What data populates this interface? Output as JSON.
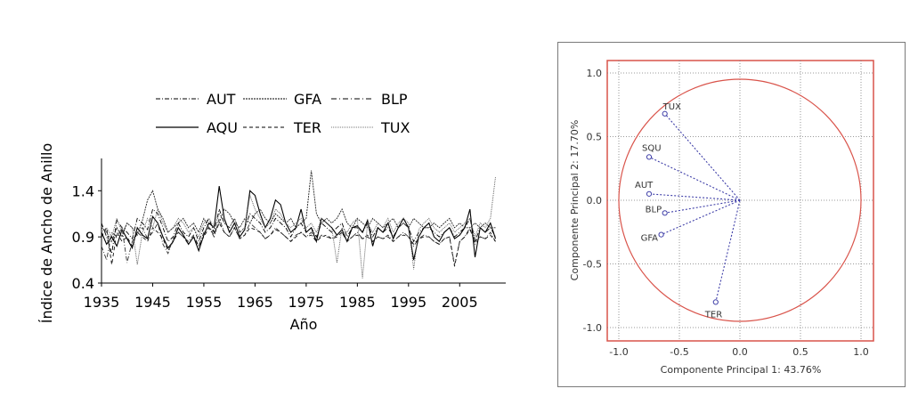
{
  "chart_data": [
    {
      "type": "line",
      "title": "",
      "xlabel": "Año",
      "ylabel": "Índice de Ancho de Anillo",
      "xlim": [
        1935,
        2014
      ],
      "ylim": [
        0.4,
        1.75
      ],
      "xticks": [
        1935,
        1945,
        1955,
        1965,
        1975,
        1985,
        1995,
        2005
      ],
      "xtick_labels": [
        "1935",
        "1945",
        "1955",
        "1965",
        "1975",
        "1985",
        "1995",
        "2005"
      ],
      "yticks": [
        0.4,
        0.9,
        1.4
      ],
      "ytick_labels": [
        "0.4",
        "0.9",
        "1.4"
      ],
      "legend": {
        "placement": "top",
        "entries": [
          {
            "label": "AUT",
            "style": "dash-dot"
          },
          {
            "label": "GFA",
            "style": "dense-dash"
          },
          {
            "label": "BLP",
            "style": "dash-dot"
          },
          {
            "label": "AQU",
            "style": "solid"
          },
          {
            "label": "TER",
            "style": "dashed"
          },
          {
            "label": "TUX",
            "style": "dotted"
          }
        ]
      },
      "x_start": 1935,
      "series": [
        {
          "name": "AQU",
          "style": "solid",
          "color": "#000000",
          "values": [
            0.95,
            0.82,
            0.9,
            0.8,
            0.98,
            0.88,
            0.78,
            1.0,
            0.92,
            0.88,
            1.12,
            1.05,
            0.9,
            0.78,
            0.85,
            1.0,
            0.92,
            0.82,
            0.9,
            0.75,
            0.92,
            1.05,
            1.0,
            1.45,
            1.1,
            0.95,
            1.05,
            0.9,
            0.98,
            1.4,
            1.35,
            1.15,
            1.0,
            1.1,
            1.3,
            1.25,
            1.05,
            0.95,
            1.0,
            1.2,
            0.95,
            1.0,
            0.85,
            1.1,
            1.05,
            1.0,
            0.92,
            0.98,
            0.85,
            1.0,
            1.02,
            0.95,
            1.08,
            0.8,
            1.0,
            0.95,
            1.05,
            0.88,
            1.0,
            1.1,
            1.0,
            0.65,
            0.9,
            1.0,
            1.05,
            0.9,
            0.85,
            0.95,
            1.0,
            0.88,
            0.92,
            1.0,
            1.2,
            0.68,
            1.0,
            0.95,
            1.05,
            0.88
          ]
        },
        {
          "name": "AUT",
          "style": "dash-dot",
          "color": "#000000",
          "values": [
            1.05,
            0.9,
            0.72,
            1.08,
            1.0,
            0.95,
            0.88,
            1.1,
            1.05,
            0.98,
            1.2,
            1.15,
            1.0,
            0.85,
            0.9,
            1.05,
            0.95,
            0.9,
            1.0,
            0.85,
            1.0,
            1.1,
            0.95,
            1.2,
            1.05,
            1.0,
            1.1,
            0.95,
            1.0,
            1.15,
            1.1,
            1.05,
            0.95,
            1.0,
            1.1,
            1.05,
            1.0,
            0.9,
            1.0,
            1.05,
            0.95,
            1.0,
            0.9,
            1.05,
            1.0,
            0.95,
            1.0,
            1.05,
            0.9,
            1.0,
            1.0,
            0.95,
            1.05,
            0.9,
            1.0,
            0.95,
            1.0,
            0.9,
            1.0,
            1.05,
            1.0,
            0.85,
            0.95,
            1.0,
            1.0,
            0.95,
            0.9,
            0.95,
            1.0,
            0.9,
            0.95,
            1.0,
            1.1,
            0.85,
            1.0,
            0.95,
            1.0,
            0.9
          ]
        },
        {
          "name": "GFA",
          "style": "dense-dash",
          "color": "#222222",
          "values": [
            1.0,
            0.95,
            0.85,
            1.0,
            0.9,
            1.05,
            1.0,
            0.92,
            1.08,
            1.3,
            1.4,
            1.2,
            1.1,
            0.95,
            1.0,
            1.05,
            1.1,
            1.0,
            1.05,
            0.95,
            1.1,
            1.0,
            0.95,
            1.05,
            1.2,
            1.15,
            1.05,
            1.0,
            1.1,
            1.05,
            1.15,
            1.2,
            1.1,
            1.05,
            1.15,
            1.1,
            1.05,
            1.1,
            1.0,
            1.05,
            1.1,
            1.62,
            1.15,
            1.05,
            1.1,
            1.05,
            1.1,
            1.2,
            1.05,
            1.0,
            1.1,
            1.05,
            1.0,
            1.1,
            1.05,
            1.0,
            1.05,
            1.1,
            1.0,
            1.05,
            1.0,
            1.1,
            1.05,
            1.0,
            1.0,
            1.05,
            1.0,
            1.05,
            1.1,
            1.0,
            1.05,
            1.0,
            1.0,
            1.05,
            1.0,
            1.05,
            1.0,
            1.0
          ]
        },
        {
          "name": "BLP",
          "style": "dash-dot",
          "color": "#333333",
          "values": [
            0.8,
            0.65,
            0.95,
            0.9,
            1.0,
            0.62,
            0.85,
            0.95,
            1.0,
            0.88,
            0.95,
            1.05,
            0.82,
            0.72,
            0.88,
            0.95,
            0.9,
            0.85,
            0.92,
            0.8,
            0.95,
            1.0,
            0.9,
            1.1,
            0.95,
            0.9,
            1.0,
            0.88,
            0.92,
            1.05,
            1.0,
            0.95,
            0.88,
            0.92,
            1.0,
            0.95,
            0.9,
            0.85,
            0.92,
            0.95,
            0.9,
            0.95,
            0.85,
            0.92,
            0.9,
            0.88,
            0.92,
            0.95,
            0.85,
            0.9,
            0.95,
            0.88,
            0.92,
            0.85,
            0.9,
            0.88,
            0.92,
            0.85,
            0.9,
            0.95,
            0.9,
            0.8,
            0.88,
            0.92,
            0.9,
            0.85,
            0.82,
            0.88,
            0.9,
            0.6,
            0.85,
            0.9,
            1.0,
            0.82,
            0.9,
            0.88,
            0.95,
            0.85
          ]
        },
        {
          "name": "TER",
          "style": "dashed",
          "color": "#111111",
          "values": [
            0.9,
            1.0,
            0.6,
            0.95,
            0.85,
            0.9,
            0.8,
            0.95,
            0.9,
            0.85,
            1.0,
            0.95,
            0.88,
            0.75,
            0.85,
            0.95,
            0.9,
            0.82,
            0.9,
            0.8,
            0.9,
            1.0,
            0.92,
            1.05,
            0.95,
            0.9,
            1.0,
            0.88,
            0.92,
            1.0,
            0.98,
            0.95,
            0.88,
            0.92,
            0.98,
            0.95,
            0.9,
            0.85,
            0.9,
            0.95,
            0.9,
            0.92,
            0.85,
            0.9,
            0.92,
            0.88,
            0.9,
            0.95,
            0.85,
            0.9,
            0.92,
            0.88,
            0.9,
            0.85,
            0.9,
            0.88,
            0.9,
            0.85,
            0.9,
            0.92,
            0.9,
            0.82,
            0.88,
            0.9,
            0.9,
            0.85,
            0.82,
            0.88,
            0.9,
            0.58,
            0.85,
            0.9,
            0.98,
            0.85,
            0.9,
            0.88,
            0.92,
            0.85
          ]
        },
        {
          "name": "TUX",
          "style": "dotted",
          "color": "#555555",
          "values": [
            0.95,
            1.0,
            0.9,
            1.1,
            0.95,
            1.05,
            1.0,
            0.6,
            0.95,
            1.1,
            1.0,
            1.2,
            1.05,
            0.95,
            1.0,
            1.1,
            1.05,
            0.95,
            1.0,
            0.9,
            1.05,
            1.1,
            1.0,
            1.15,
            1.05,
            1.0,
            1.1,
            0.95,
            1.0,
            1.35,
            1.2,
            1.1,
            1.0,
            1.05,
            1.2,
            1.15,
            1.05,
            1.0,
            1.05,
            1.1,
            1.0,
            1.05,
            0.95,
            1.1,
            1.05,
            1.0,
            0.62,
            1.0,
            0.95,
            1.05,
            1.1,
            0.45,
            1.05,
            0.95,
            1.05,
            1.0,
            1.1,
            0.95,
            1.05,
            1.1,
            1.05,
            0.55,
            0.98,
            1.05,
            1.1,
            1.0,
            0.95,
            1.0,
            1.05,
            0.95,
            1.0,
            1.05,
            1.1,
            0.9,
            1.05,
            1.0,
            1.1,
            1.55
          ]
        }
      ]
    },
    {
      "type": "scatter",
      "subtype": "pca-correlation-circle",
      "title": "",
      "xlabel": "Componente Principal 1: 43.76%",
      "ylabel": "Componente Principal 2: 17.70%",
      "xlim": [
        -1.1,
        1.1
      ],
      "ylim": [
        -1.1,
        1.1
      ],
      "xticks": [
        -1.0,
        -0.5,
        0.0,
        0.5,
        1.0
      ],
      "xtick_labels": [
        "-1.0",
        "-0.5",
        "0.0",
        "0.5",
        "1.0"
      ],
      "yticks": [
        1.0,
        0.5,
        0.0,
        -0.5,
        -1.0
      ],
      "ytick_labels": [
        "1.0",
        "0.5",
        "0.0",
        "-0.5",
        "-1.0"
      ],
      "grid": true,
      "circle_radius": 1.0,
      "points": [
        {
          "label": "TUX",
          "x": -0.62,
          "y": 0.68
        },
        {
          "label": "SQU",
          "x": -0.75,
          "y": 0.34
        },
        {
          "label": "AUT",
          "x": -0.75,
          "y": 0.05
        },
        {
          "label": "BLP",
          "x": -0.62,
          "y": -0.1
        },
        {
          "label": "GFA",
          "x": -0.65,
          "y": -0.27
        },
        {
          "label": "TER",
          "x": -0.2,
          "y": -0.8
        }
      ],
      "colors": {
        "frame": "#d9534a",
        "circle": "#d9534a",
        "vectors": "#3f3fa8",
        "grid": "#7a7a7a"
      }
    }
  ]
}
